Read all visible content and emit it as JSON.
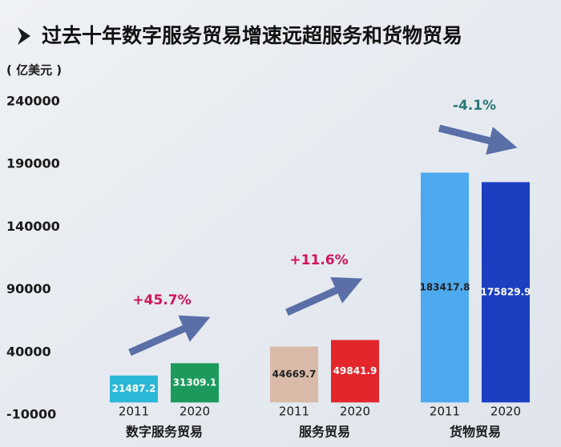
{
  "chart_data": {
    "type": "bar",
    "title": "过去十年数字服务贸易增速远超服务和货物贸易",
    "y_label": "( 亿美元 )",
    "categories": [
      "数字服务贸易",
      "服务贸易",
      "货物贸易"
    ],
    "series": [
      {
        "name": "2011",
        "values": [
          21487.2,
          44669.7,
          183417.8
        ],
        "colors": [
          "#2bb8d8",
          "#d9baa9",
          "#4da9ef"
        ],
        "label_colors": [
          "#ffffff",
          "#222222",
          "#222222"
        ]
      },
      {
        "name": "2020",
        "values": [
          31309.1,
          49841.9,
          175829.9
        ],
        "colors": [
          "#1b9a5c",
          "#e2262c",
          "#1c3fc2"
        ],
        "label_colors": [
          "#ffffff",
          "#ffffff",
          "#ffffff"
        ]
      }
    ],
    "annotations": [
      {
        "text": "+45.7%",
        "color": "#d2145a"
      },
      {
        "text": "+11.6%",
        "color": "#d2145a"
      },
      {
        "text": "-4.1%",
        "color": "#2a7878"
      }
    ],
    "ylim": [
      -10000,
      240000
    ],
    "yticks": [
      -10000,
      40000,
      90000,
      140000,
      190000,
      240000
    ]
  }
}
